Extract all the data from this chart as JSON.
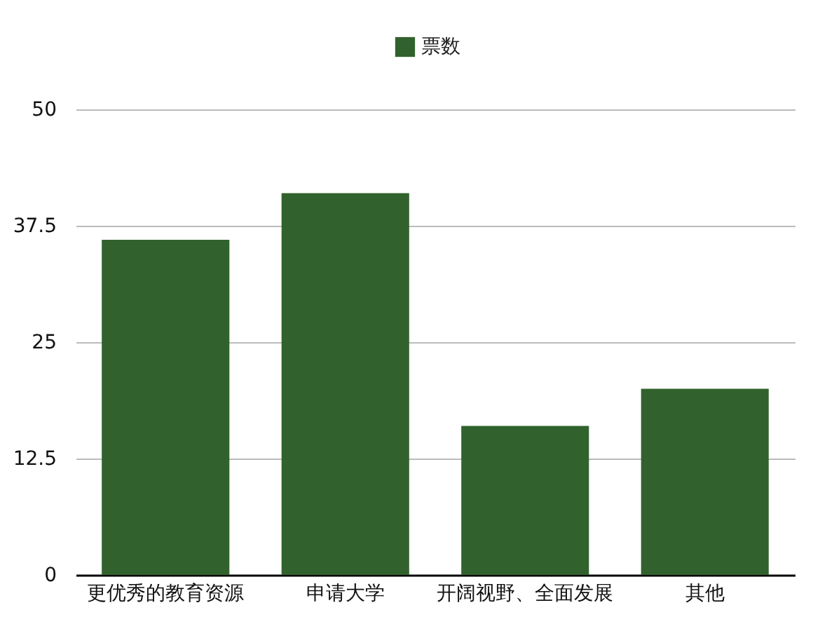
{
  "chart_data": {
    "type": "bar",
    "categories": [
      "更优秀的教育资源",
      "申请大学",
      "开阔视野、全面发展",
      "其他"
    ],
    "series": [
      {
        "name": "票数",
        "color": "#31622d",
        "values": [
          36,
          41,
          16,
          20
        ]
      }
    ],
    "ylim": [
      0,
      50
    ],
    "yticks": [
      0,
      12.5,
      25,
      37.5,
      50
    ],
    "grid": "y",
    "legend": "top"
  }
}
